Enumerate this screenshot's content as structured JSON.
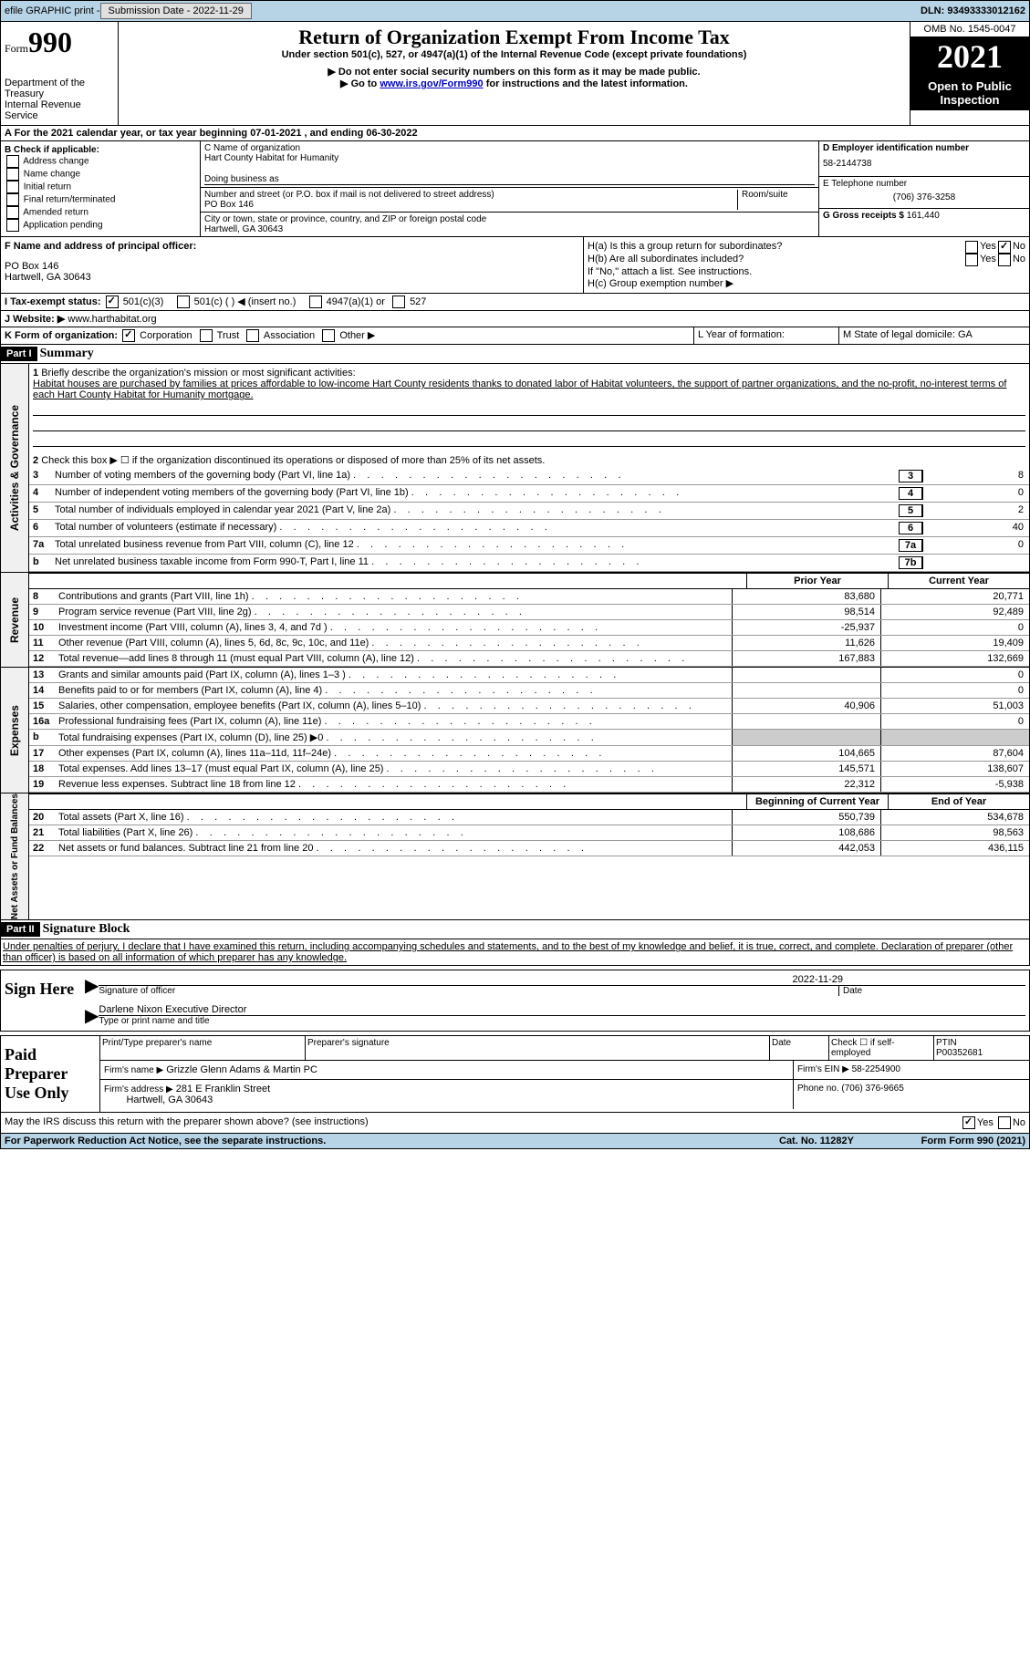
{
  "topbar": {
    "efile": "efile GRAPHIC print - ",
    "sub_label": "Submission Date - 2022-11-29",
    "dln": "DLN: 93493333012162"
  },
  "header": {
    "form_prefix": "Form",
    "form_num": "990",
    "dept": "Department of the Treasury",
    "irs": "Internal Revenue Service",
    "title": "Return of Organization Exempt From Income Tax",
    "subtitle": "Under section 501(c), 527, or 4947(a)(1) of the Internal Revenue Code (except private foundations)",
    "note1": "▶ Do not enter social security numbers on this form as it may be made public.",
    "note2_prefix": "▶ Go to ",
    "note2_link": "www.irs.gov/Form990",
    "note2_suffix": " for instructions and the latest information.",
    "omb": "OMB No. 1545-0047",
    "year": "2021",
    "open": "Open to Public Inspection"
  },
  "section_a": {
    "text": "A For the 2021 calendar year, or tax year beginning 07-01-2021    , and ending 06-30-2022"
  },
  "section_b": {
    "check_label": "B Check if applicable:",
    "items": [
      "Address change",
      "Name change",
      "Initial return",
      "Final return/terminated",
      "Amended return",
      "Application pending"
    ],
    "c_label": "C Name of organization",
    "c_name": "Hart County Habitat for Humanity",
    "dba": "Doing business as",
    "addr_label": "Number and street (or P.O. box if mail is not delivered to street address)",
    "room": "Room/suite",
    "addr": "PO Box 146",
    "city_label": "City or town, state or province, country, and ZIP or foreign postal code",
    "city": "Hartwell, GA  30643",
    "d_label": "D Employer identification number",
    "d_val": "58-2144738",
    "e_label": "E Telephone number",
    "e_val": "(706) 376-3258",
    "g_label": "G Gross receipts $",
    "g_val": "161,440"
  },
  "section_fh": {
    "f_label": "F  Name and address of principal officer:",
    "f_addr1": "PO Box 146",
    "f_addr2": "Hartwell, GA  30643",
    "ha_label": "H(a)  Is this a group return for subordinates?",
    "hb_label": "H(b)  Are all subordinates included?",
    "h_note": "If \"No,\" attach a list. See instructions.",
    "hc_label": "H(c)  Group exemption number ▶",
    "yes": "Yes",
    "no": "No"
  },
  "section_i": {
    "label": "I   Tax-exempt status:",
    "opts": [
      "501(c)(3)",
      "501(c) (  ) ◀ (insert no.)",
      "4947(a)(1) or",
      "527"
    ]
  },
  "section_j": {
    "label": "J  Website: ▶",
    "val": "  www.harthabitat.org"
  },
  "section_k": {
    "label": "K Form of organization:",
    "opts": [
      "Corporation",
      "Trust",
      "Association",
      "Other ▶"
    ],
    "l_label": "L Year of formation:",
    "m_label": "M State of legal domicile: GA"
  },
  "part1": {
    "header": "Part I",
    "title": "Summary",
    "side_gov": "Activities & Governance",
    "side_rev": "Revenue",
    "side_exp": "Expenses",
    "side_net": "Net Assets or Fund Balances",
    "l1_label": "Briefly describe the organization's mission or most significant activities:",
    "l1_text": "Habitat houses are purchased by families at prices affordable to low-income Hart County residents thanks to donated labor of Habitat volunteers, the support of partner organizations, and the no-profit, no-interest terms of each Hart County Habitat for Humanity mortgage.",
    "l2": "Check this box ▶ ☐  if the organization discontinued its operations or disposed of more than 25% of its net assets.",
    "lines_gov": [
      {
        "n": "3",
        "d": "Number of voting members of the governing body (Part VI, line 1a)",
        "box": "3",
        "v": "8"
      },
      {
        "n": "4",
        "d": "Number of independent voting members of the governing body (Part VI, line 1b)",
        "box": "4",
        "v": "0"
      },
      {
        "n": "5",
        "d": "Total number of individuals employed in calendar year 2021 (Part V, line 2a)",
        "box": "5",
        "v": "2"
      },
      {
        "n": "6",
        "d": "Total number of volunteers (estimate if necessary)",
        "box": "6",
        "v": "40"
      },
      {
        "n": "7a",
        "d": "Total unrelated business revenue from Part VIII, column (C), line 12",
        "box": "7a",
        "v": "0"
      },
      {
        "n": "b",
        "d": "Net unrelated business taxable income from Form 990-T, Part I, line 11",
        "box": "7b",
        "v": ""
      }
    ],
    "col_prior": "Prior Year",
    "col_current": "Current Year",
    "lines_rev": [
      {
        "n": "8",
        "d": "Contributions and grants (Part VIII, line 1h)",
        "p": "83,680",
        "c": "20,771"
      },
      {
        "n": "9",
        "d": "Program service revenue (Part VIII, line 2g)",
        "p": "98,514",
        "c": "92,489"
      },
      {
        "n": "10",
        "d": "Investment income (Part VIII, column (A), lines 3, 4, and 7d )",
        "p": "-25,937",
        "c": "0"
      },
      {
        "n": "11",
        "d": "Other revenue (Part VIII, column (A), lines 5, 6d, 8c, 9c, 10c, and 11e)",
        "p": "11,626",
        "c": "19,409"
      },
      {
        "n": "12",
        "d": "Total revenue—add lines 8 through 11 (must equal Part VIII, column (A), line 12)",
        "p": "167,883",
        "c": "132,669"
      }
    ],
    "lines_exp": [
      {
        "n": "13",
        "d": "Grants and similar amounts paid (Part IX, column (A), lines 1–3 )",
        "p": "",
        "c": "0"
      },
      {
        "n": "14",
        "d": "Benefits paid to or for members (Part IX, column (A), line 4)",
        "p": "",
        "c": "0"
      },
      {
        "n": "15",
        "d": "Salaries, other compensation, employee benefits (Part IX, column (A), lines 5–10)",
        "p": "40,906",
        "c": "51,003"
      },
      {
        "n": "16a",
        "d": "Professional fundraising fees (Part IX, column (A), line 11e)",
        "p": "",
        "c": "0"
      },
      {
        "n": "b",
        "d": "Total fundraising expenses (Part IX, column (D), line 25) ▶0",
        "p": "shaded",
        "c": "shaded"
      },
      {
        "n": "17",
        "d": "Other expenses (Part IX, column (A), lines 11a–11d, 11f–24e)",
        "p": "104,665",
        "c": "87,604"
      },
      {
        "n": "18",
        "d": "Total expenses. Add lines 13–17 (must equal Part IX, column (A), line 25)",
        "p": "145,571",
        "c": "138,607"
      },
      {
        "n": "19",
        "d": "Revenue less expenses. Subtract line 18 from line 12",
        "p": "22,312",
        "c": "-5,938"
      }
    ],
    "col_begin": "Beginning of Current Year",
    "col_end": "End of Year",
    "lines_net": [
      {
        "n": "20",
        "d": "Total assets (Part X, line 16)",
        "p": "550,739",
        "c": "534,678"
      },
      {
        "n": "21",
        "d": "Total liabilities (Part X, line 26)",
        "p": "108,686",
        "c": "98,563"
      },
      {
        "n": "22",
        "d": "Net assets or fund balances. Subtract line 21 from line 20",
        "p": "442,053",
        "c": "436,115"
      }
    ]
  },
  "part2": {
    "header": "Part II",
    "title": "Signature Block",
    "decl": "Under penalties of perjury, I declare that I have examined this return, including accompanying schedules and statements, and to the best of my knowledge and belief, it is true, correct, and complete. Declaration of preparer (other than officer) is based on all information of which preparer has any knowledge.",
    "sign_here": "Sign Here",
    "sig_officer": "Signature of officer",
    "sig_date": "2022-11-29",
    "date": "Date",
    "name_title": "Darlene Nixon  Executive Director",
    "type_name": "Type or print name and title",
    "paid": "Paid Preparer Use Only",
    "print_name": "Print/Type preparer's name",
    "prep_sig": "Preparer's signature",
    "check_self": "Check ☐ if self-employed",
    "ptin_label": "PTIN",
    "ptin": "P00352681",
    "firm_name_label": "Firm's name     ▶",
    "firm_name": "Grizzle Glenn Adams & Martin PC",
    "firm_ein_label": "Firm's EIN ▶",
    "firm_ein": "58-2254900",
    "firm_addr_label": "Firm's address ▶",
    "firm_addr1": "281 E Franklin Street",
    "firm_addr2": "Hartwell, GA  30643",
    "phone_label": "Phone no.",
    "phone": "(706) 376-9665",
    "discuss": "May the IRS discuss this return with the preparer shown above? (see instructions)"
  },
  "footer": {
    "paperwork": "For Paperwork Reduction Act Notice, see the separate instructions.",
    "cat": "Cat. No. 11282Y",
    "form": "Form 990 (2021)"
  }
}
